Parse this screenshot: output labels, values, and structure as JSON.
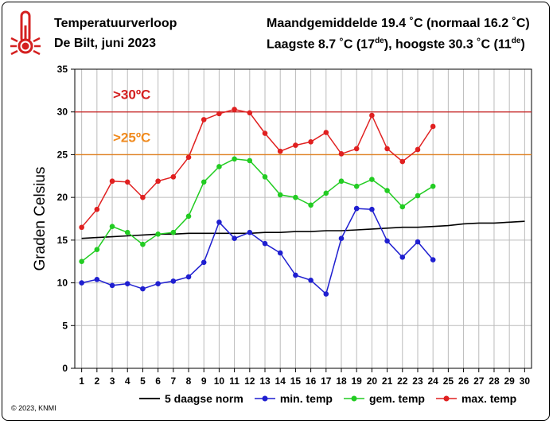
{
  "header": {
    "title": "Temperatuurverloop",
    "subtitle": "De Bilt, juni 2023",
    "right_line1": "Maandgemiddelde 19.4 ˚C (normaal 16.2 ˚C)",
    "right_line2_pre": "Laagste 8.7 ˚C (17",
    "right_line2_sup1": "de",
    "right_line2_mid": "), hoogste 30.3 ˚C (11",
    "right_line2_sup2": "de",
    "right_line2_post": ")"
  },
  "copyright": "© 2023, KNMI",
  "colors": {
    "norm": "#000000",
    "min": "#1f1fd0",
    "gem": "#22cc22",
    "max": "#e02020",
    "line30": "#c82020",
    "line25": "#e08020",
    "label30": "#d42020",
    "label25": "#f08a1e"
  },
  "chart_data": {
    "type": "line",
    "ylabel": "Graden Celsius",
    "xlabel": "",
    "ylim": [
      0,
      35
    ],
    "yticks": [
      0,
      5,
      10,
      15,
      20,
      25,
      30,
      35
    ],
    "xlim": [
      1,
      30
    ],
    "xticks": [
      1,
      2,
      3,
      4,
      5,
      6,
      7,
      8,
      9,
      10,
      11,
      12,
      13,
      14,
      15,
      16,
      17,
      18,
      19,
      20,
      21,
      22,
      23,
      24,
      25,
      26,
      27,
      28,
      29,
      30
    ],
    "grid": true,
    "legend": "bottom",
    "thresholds": [
      {
        "value": 30,
        "label": ">30ºC"
      },
      {
        "value": 25,
        "label": ">25ºC"
      }
    ],
    "series": [
      {
        "name": "5 daagse norm",
        "x": [
          1,
          2,
          3,
          4,
          5,
          6,
          7,
          8,
          9,
          10,
          11,
          12,
          13,
          14,
          15,
          16,
          17,
          18,
          19,
          20,
          21,
          22,
          23,
          24,
          25,
          26,
          27,
          28,
          29,
          30
        ],
        "values": [
          15.2,
          15.3,
          15.4,
          15.5,
          15.6,
          15.7,
          15.7,
          15.8,
          15.8,
          15.8,
          15.8,
          15.8,
          15.9,
          15.9,
          16.0,
          16.0,
          16.1,
          16.1,
          16.2,
          16.3,
          16.4,
          16.5,
          16.5,
          16.6,
          16.7,
          16.9,
          17.0,
          17.0,
          17.1,
          17.2
        ]
      },
      {
        "name": "min. temp",
        "x": [
          1,
          2,
          3,
          4,
          5,
          6,
          7,
          8,
          9,
          10,
          11,
          12,
          13,
          14,
          15,
          16,
          17,
          18,
          19,
          20,
          21,
          22,
          23,
          24
        ],
        "values": [
          10.0,
          10.4,
          9.7,
          9.9,
          9.3,
          9.9,
          10.2,
          10.7,
          12.4,
          17.1,
          15.2,
          15.9,
          14.6,
          13.5,
          10.9,
          10.3,
          8.7,
          15.2,
          18.7,
          18.6,
          14.9,
          13.0,
          14.8,
          12.7
        ]
      },
      {
        "name": "gem. temp",
        "x": [
          1,
          2,
          3,
          4,
          5,
          6,
          7,
          8,
          9,
          10,
          11,
          12,
          13,
          14,
          15,
          16,
          17,
          18,
          19,
          20,
          21,
          22,
          23,
          24
        ],
        "values": [
          12.5,
          13.9,
          16.6,
          15.9,
          14.5,
          15.7,
          15.9,
          17.8,
          21.8,
          23.6,
          24.5,
          24.3,
          22.4,
          20.3,
          20.0,
          19.1,
          20.5,
          21.9,
          21.3,
          22.1,
          20.8,
          18.9,
          20.2,
          21.3
        ]
      },
      {
        "name": "max. temp",
        "x": [
          1,
          2,
          3,
          4,
          5,
          6,
          7,
          8,
          9,
          10,
          11,
          12,
          13,
          14,
          15,
          16,
          17,
          18,
          19,
          20,
          21,
          22,
          23,
          24
        ],
        "values": [
          16.5,
          18.6,
          21.9,
          21.8,
          20.0,
          21.9,
          22.4,
          24.7,
          29.1,
          29.8,
          30.3,
          29.9,
          27.5,
          25.4,
          26.1,
          26.5,
          27.6,
          25.1,
          25.7,
          29.6,
          25.7,
          24.2,
          25.6,
          28.3
        ]
      }
    ]
  }
}
